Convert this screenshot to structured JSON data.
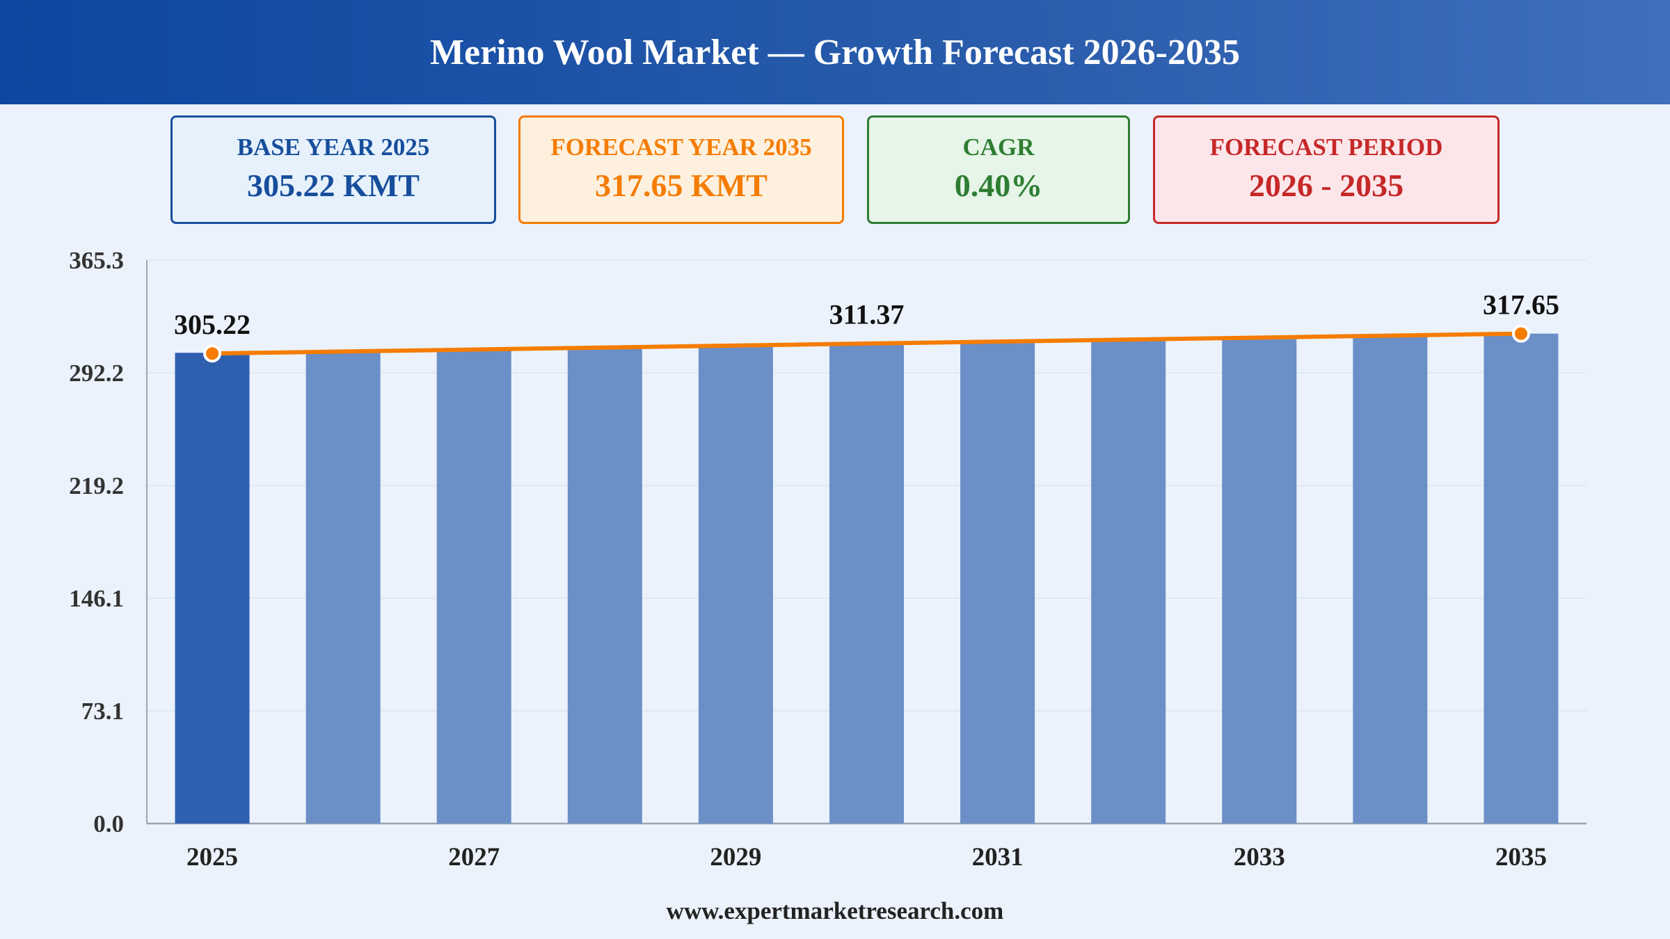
{
  "header": {
    "title": "Merino Wool Market — Growth Forecast 2026-2035"
  },
  "cards": {
    "base": {
      "label": "BASE YEAR 2025",
      "value": "305.22 KMT"
    },
    "forecast": {
      "label": "FORECAST YEAR 2035",
      "value": "317.65 KMT"
    },
    "cagr": {
      "label": "CAGR",
      "value": "0.40%"
    },
    "period": {
      "label": "FORECAST PERIOD",
      "value": "2026 - 2035"
    }
  },
  "footer": {
    "text": "www.expertmarketresearch.com"
  },
  "colors": {
    "base_bar": "#2f60b0",
    "bar": "#6b8fc7",
    "trend_line": "#f57c00",
    "grid": "#dde5ef",
    "axis": "#9aa5b3"
  },
  "chart_data": {
    "type": "bar",
    "categories": [
      "2025",
      "2026",
      "2027",
      "2028",
      "2029",
      "2030",
      "2031",
      "2032",
      "2033",
      "2034",
      "2035"
    ],
    "x_tick_labels": [
      "2025",
      "2027",
      "2029",
      "2031",
      "2033",
      "2035"
    ],
    "values": [
      305.22,
      306.44,
      307.67,
      308.9,
      310.13,
      311.37,
      312.62,
      313.87,
      315.13,
      316.39,
      317.65
    ],
    "y_ticks": [
      "0.0",
      "73.1",
      "146.1",
      "219.2",
      "292.2",
      "365.3"
    ],
    "ylim": [
      0,
      365.3
    ],
    "grid": true,
    "trend_line": true,
    "annotations": [
      {
        "category": "2025",
        "label": "305.22",
        "marker": true
      },
      {
        "category": "2030",
        "label": "311.37",
        "marker": false
      },
      {
        "category": "2035",
        "label": "317.65",
        "marker": true
      }
    ],
    "title": "",
    "xlabel": "",
    "ylabel": ""
  }
}
